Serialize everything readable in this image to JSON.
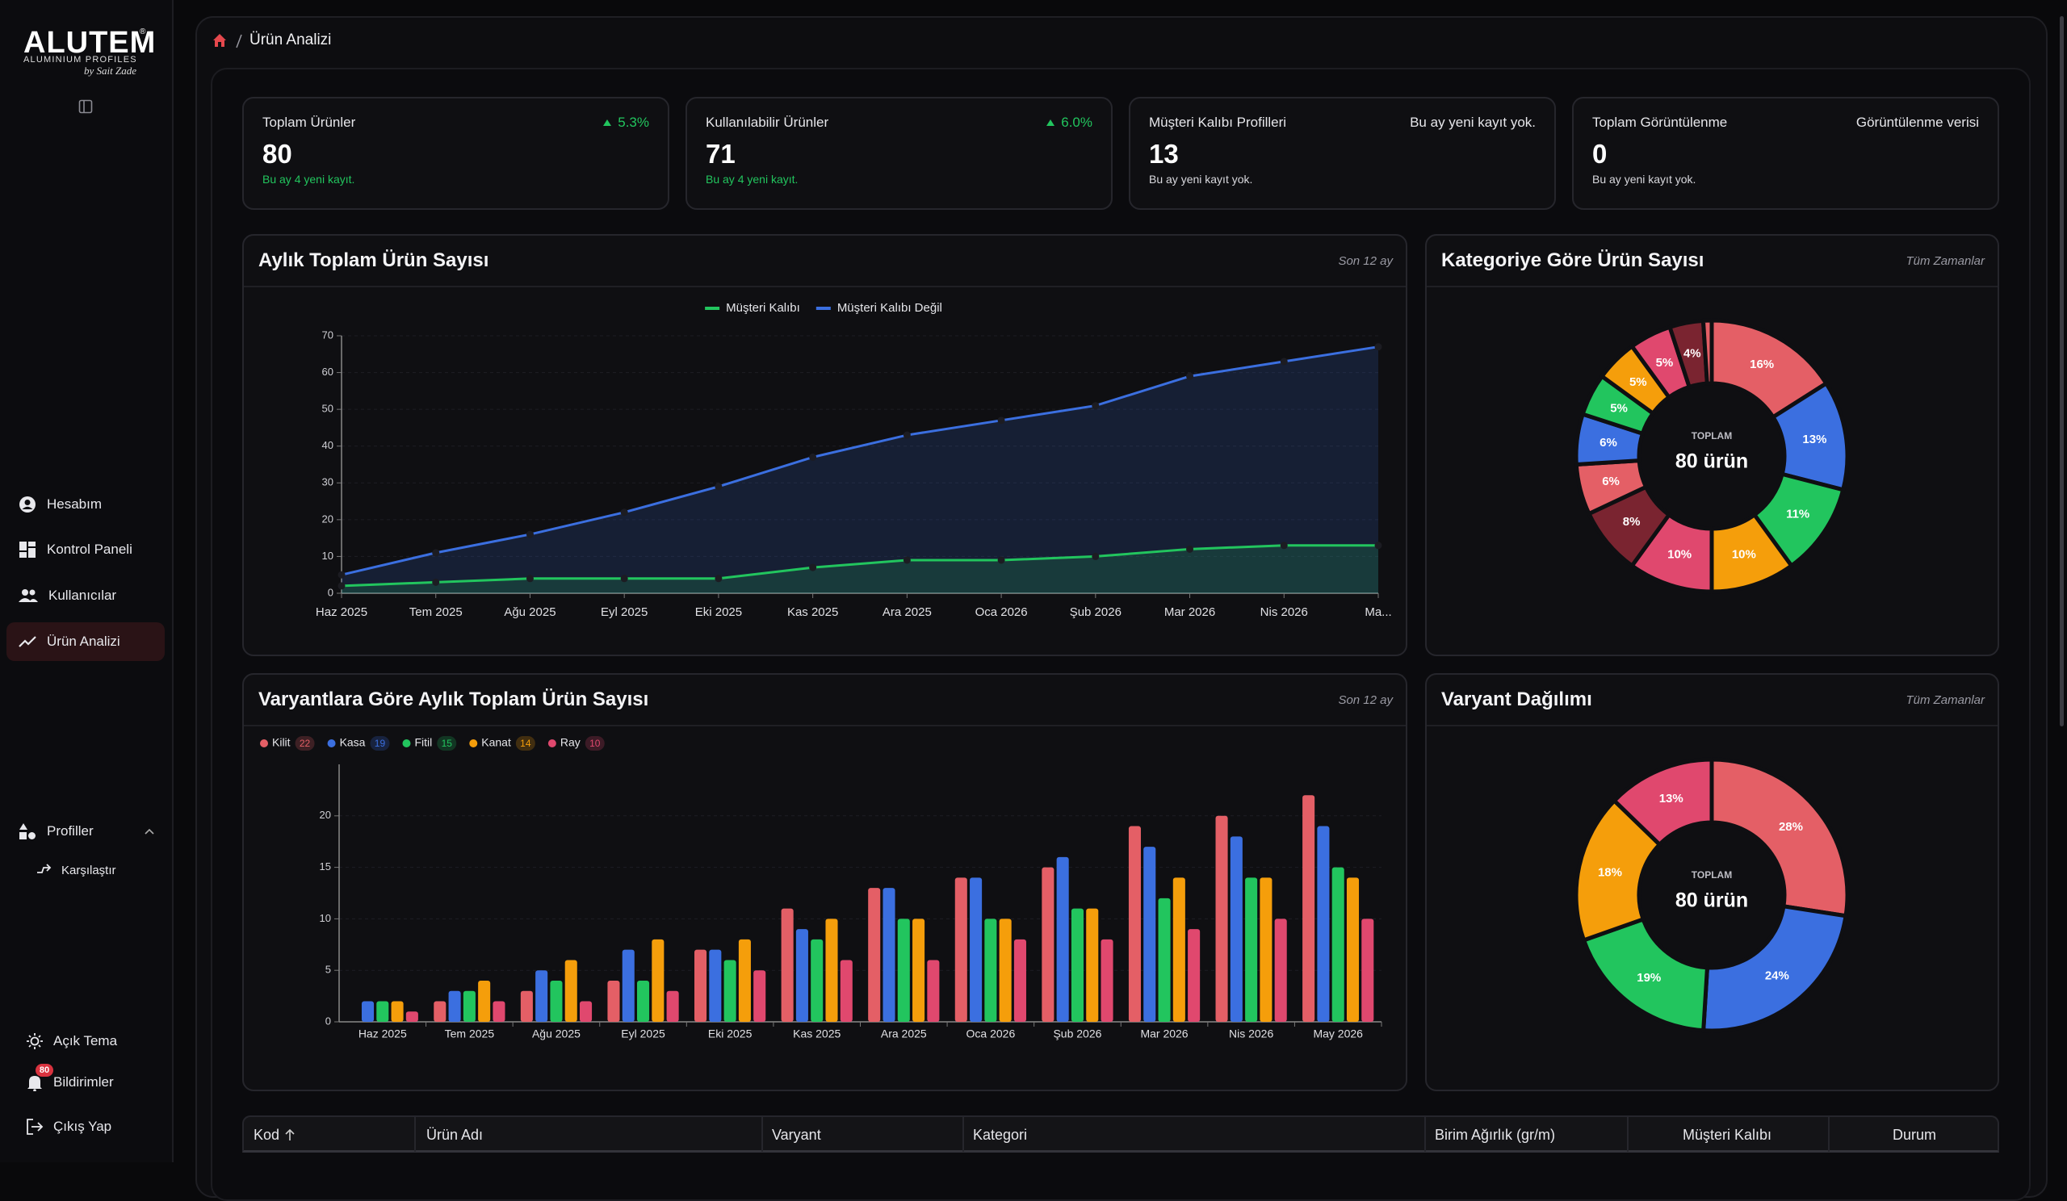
{
  "sidebar": {
    "logo": "ALUTEM",
    "registered": "®",
    "logo_subtitle": "ALUMINIUM PROFILES",
    "logo_signature": "by Sait Zade",
    "nav": [
      "Hesabım",
      "Kontrol Paneli",
      "Kullanıcılar",
      "Ürün Analizi"
    ],
    "profiles": {
      "label": "Profiller",
      "items": [
        "Karşılaştır"
      ]
    },
    "footer": [
      "Açık Tema",
      "Bildirimler",
      "Çıkış Yap"
    ],
    "notification_count": 80
  },
  "breadcrumb": {
    "current": "Ürün Analizi"
  },
  "stats": [
    {
      "title": "Toplam Ürünler",
      "trend": "5.3%",
      "value": 80,
      "note": "Bu ay 4 yeni kayıt."
    },
    {
      "title": "Kullanılabilir Ürünler",
      "trend": "6.0%",
      "value": 71,
      "note": "Bu ay 4 yeni kayıt."
    },
    {
      "title": "Müşteri Kalıbı Profilleri",
      "info": "Bu ay yeni kayıt yok.",
      "value": 13,
      "note": "Bu ay yeni kayıt yok."
    },
    {
      "title": "Toplam Görüntülenme",
      "info": "Görüntülenme verisi",
      "value": 0,
      "note": "Bu ay yeni kayıt yok."
    }
  ],
  "chart_data": [
    {
      "type": "area",
      "title": "Aylık Toplam Ürün Sayısı",
      "subtitle": "Son 12 ay",
      "categories": [
        "Haz 2025",
        "Tem 2025",
        "Ağu 2025",
        "Eyl 2025",
        "Eki 2025",
        "Kas 2025",
        "Ara 2025",
        "Oca 2026",
        "Şub 2026",
        "Mar 2026",
        "Nis 2026",
        "Ma..."
      ],
      "series": [
        {
          "name": "Müşteri Kalıbı",
          "color": "#22c55e",
          "values": [
            2,
            3,
            4,
            4,
            4,
            7,
            9,
            9,
            10,
            12,
            13,
            13
          ]
        },
        {
          "name": "Müşteri Kalıbı Değil",
          "color": "#3b6fe0",
          "values": [
            5,
            11,
            16,
            22,
            29,
            37,
            43,
            47,
            51,
            59,
            63,
            67
          ]
        }
      ],
      "ylim": [
        0,
        70
      ],
      "yticks": [
        0,
        10,
        20,
        30,
        40,
        50,
        60,
        70
      ],
      "grid": true,
      "legend": "top"
    },
    {
      "type": "donut",
      "title": "Kategoriye Göre Ürün Sayısı",
      "subtitle": "Tüm Zamanlar",
      "center_label": "TOPLAM",
      "center_value": "80 ürün",
      "values": [
        16,
        13,
        11,
        10,
        10,
        8,
        6,
        6,
        5,
        5,
        5,
        4,
        1
      ],
      "value_labels": [
        "16%",
        "13%",
        "11%",
        "10%",
        "10%",
        "8%",
        "6%",
        "6%",
        "5%",
        "5%",
        "5%",
        "4%",
        null
      ],
      "colors": [
        "#e45f66",
        "#3b6fe0",
        "#22c55e",
        "#f59e0b",
        "#e0486e",
        "#7a2430",
        "#e45f66",
        "#3b6fe0",
        "#22c55e",
        "#f59e0b",
        "#e0486e",
        "#7a2430",
        "#e45f66"
      ]
    },
    {
      "type": "bar",
      "title": "Varyantlara Göre Aylık Toplam Ürün Sayısı",
      "subtitle": "Son 12 ay",
      "categories": [
        "Haz 2025",
        "Tem 2025",
        "Ağu 2025",
        "Eyl 2025",
        "Eki 2025",
        "Kas 2025",
        "Ara 2025",
        "Oca 2026",
        "Şub 2026",
        "Mar 2026",
        "Nis 2026",
        "May 2026"
      ],
      "series": [
        {
          "name": "Kilit",
          "color": "#e45f66",
          "values": [
            0,
            2,
            3,
            4,
            7,
            11,
            13,
            14,
            15,
            19,
            20,
            22
          ]
        },
        {
          "name": "Kasa",
          "color": "#3b6fe0",
          "values": [
            2,
            3,
            5,
            7,
            7,
            9,
            13,
            14,
            16,
            17,
            18,
            19
          ]
        },
        {
          "name": "Fitil",
          "color": "#22c55e",
          "values": [
            2,
            3,
            4,
            4,
            6,
            8,
            10,
            10,
            11,
            12,
            14,
            15
          ]
        },
        {
          "name": "Kanat",
          "color": "#f59e0b",
          "values": [
            2,
            4,
            6,
            8,
            8,
            10,
            10,
            10,
            11,
            14,
            14,
            14
          ]
        },
        {
          "name": "Ray",
          "color": "#e0486e",
          "values": [
            1,
            2,
            2,
            3,
            5,
            6,
            6,
            8,
            8,
            9,
            10,
            10
          ]
        }
      ],
      "ylim": [
        0,
        25
      ],
      "yticks": [
        0,
        5,
        10,
        15,
        20
      ],
      "grid": true,
      "legend": "top-left"
    },
    {
      "type": "donut",
      "title": "Varyant Dağılımı",
      "subtitle": "Tüm Zamanlar",
      "center_label": "TOPLAM",
      "center_value": "80 ürün",
      "values": [
        28,
        24,
        19,
        18,
        13
      ],
      "value_labels": [
        "28%",
        "24%",
        "19%",
        "18%",
        "13%"
      ],
      "colors": [
        "#e45f66",
        "#3b6fe0",
        "#22c55e",
        "#f59e0b",
        "#e0486e"
      ]
    }
  ],
  "table": {
    "columns": [
      "Kod",
      "Ürün Adı",
      "Varyant",
      "Kategori",
      "Birim Ağırlık (gr/m)",
      "Müşteri Kalıbı",
      "Durum"
    ]
  }
}
